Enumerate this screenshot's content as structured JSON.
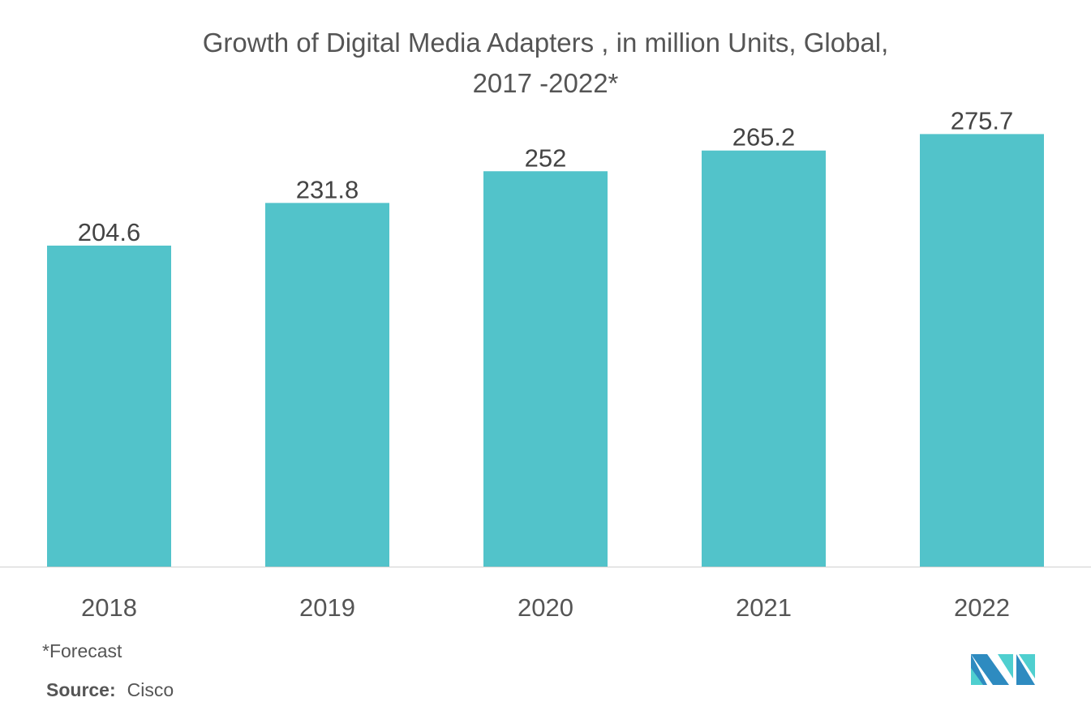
{
  "chart_data": {
    "type": "bar",
    "title_lines": [
      "Growth of Digital Media Adapters , in million Units, Global,",
      "2017 -2022*"
    ],
    "categories": [
      "2018",
      "2019",
      "2020",
      "2021",
      "2022"
    ],
    "values": [
      204.6,
      231.8,
      252,
      265.2,
      275.7
    ],
    "data_labels": [
      "204.6",
      "231.8",
      "252",
      "265.2",
      "275.7"
    ],
    "xlabel": "",
    "ylabel": "",
    "ylim": [
      0,
      290
    ],
    "grid": false,
    "bar_color": "#52C3CA"
  },
  "footnote": "*Forecast",
  "source": {
    "label": "Source:",
    "value": "Cisco"
  },
  "logo": {
    "colors": [
      "#2E8BC0",
      "#4FCFCF"
    ]
  }
}
